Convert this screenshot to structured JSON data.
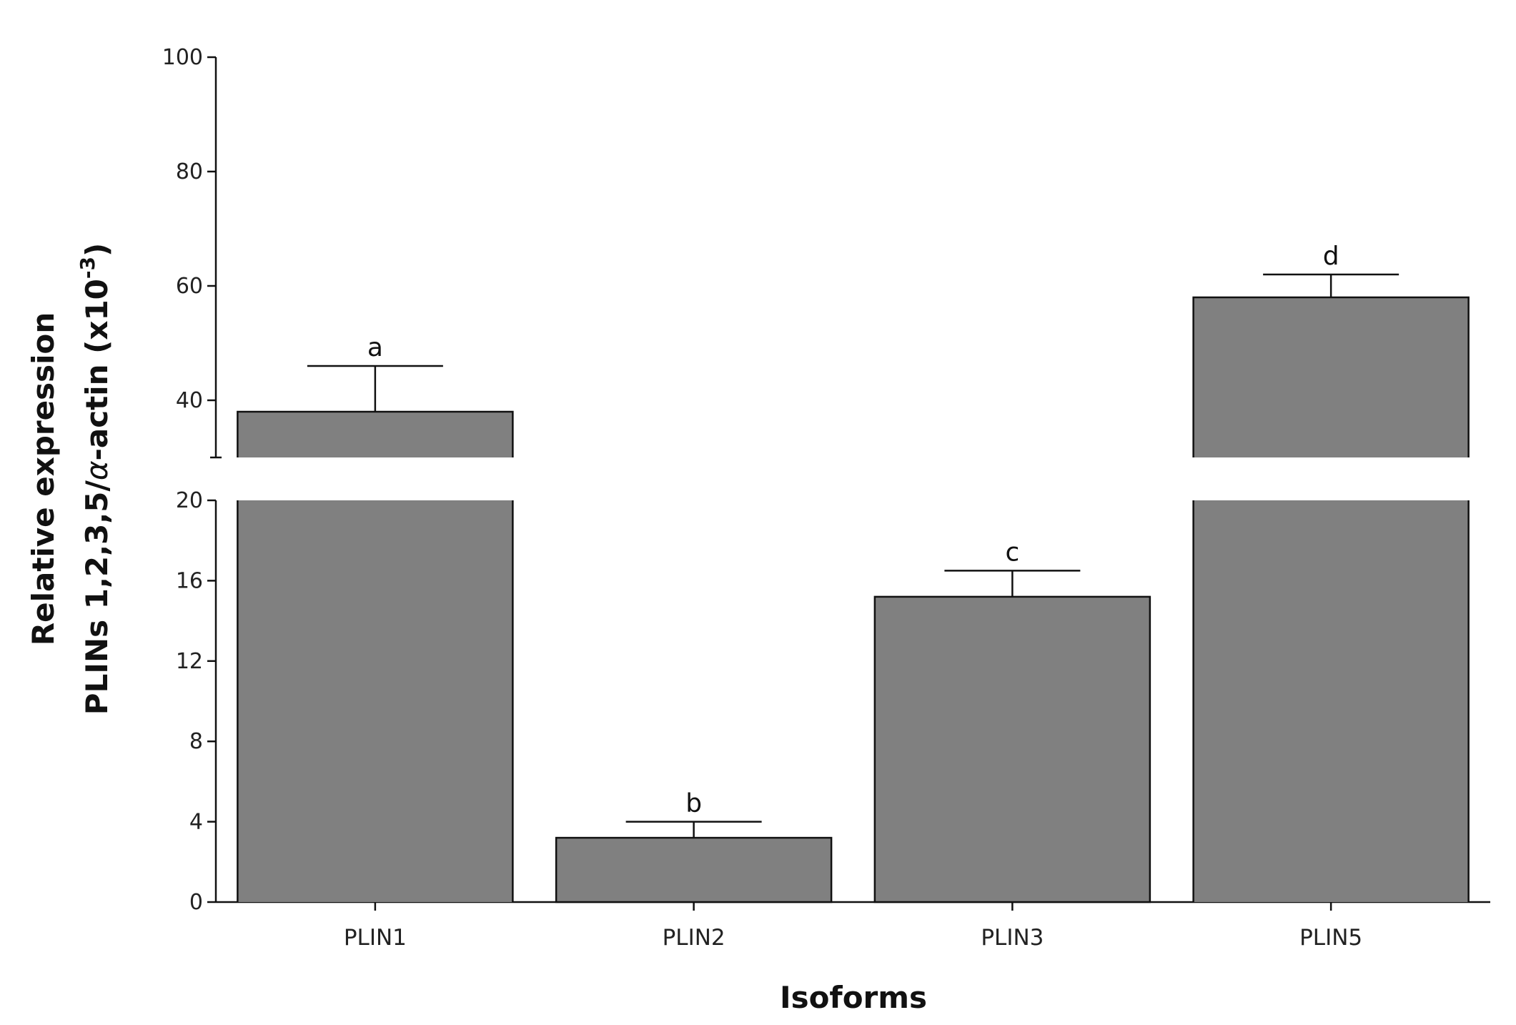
{
  "chart_data": {
    "type": "bar",
    "categories": [
      "PLIN1",
      "PLIN2",
      "PLIN3",
      "PLIN5"
    ],
    "values": [
      38,
      3.2,
      15.2,
      58
    ],
    "error_upper": [
      46,
      4.0,
      16.5,
      62
    ],
    "significance_labels": [
      "a",
      "b",
      "c",
      "d"
    ],
    "xlabel": "Isoforms",
    "ylabel_line1": "Relative expression",
    "ylabel_line2_prefix": "PLINs 1,2,3,5/",
    "ylabel_line2_alpha": "α",
    "ylabel_line2_mid": "-actin  (x10",
    "ylabel_line2_sup": "-3",
    "ylabel_line2_suffix": ")",
    "y_axis_broken": true,
    "lower_segment": {
      "ylim": [
        0,
        20
      ],
      "ticks": [
        "0",
        "4",
        "8",
        "12",
        "16",
        "20"
      ]
    },
    "upper_segment": {
      "ylim": [
        30,
        100
      ],
      "ticks": [
        "40",
        "60",
        "80",
        "100"
      ]
    },
    "bar_color": "#808080",
    "grid": false,
    "legend": "none"
  }
}
